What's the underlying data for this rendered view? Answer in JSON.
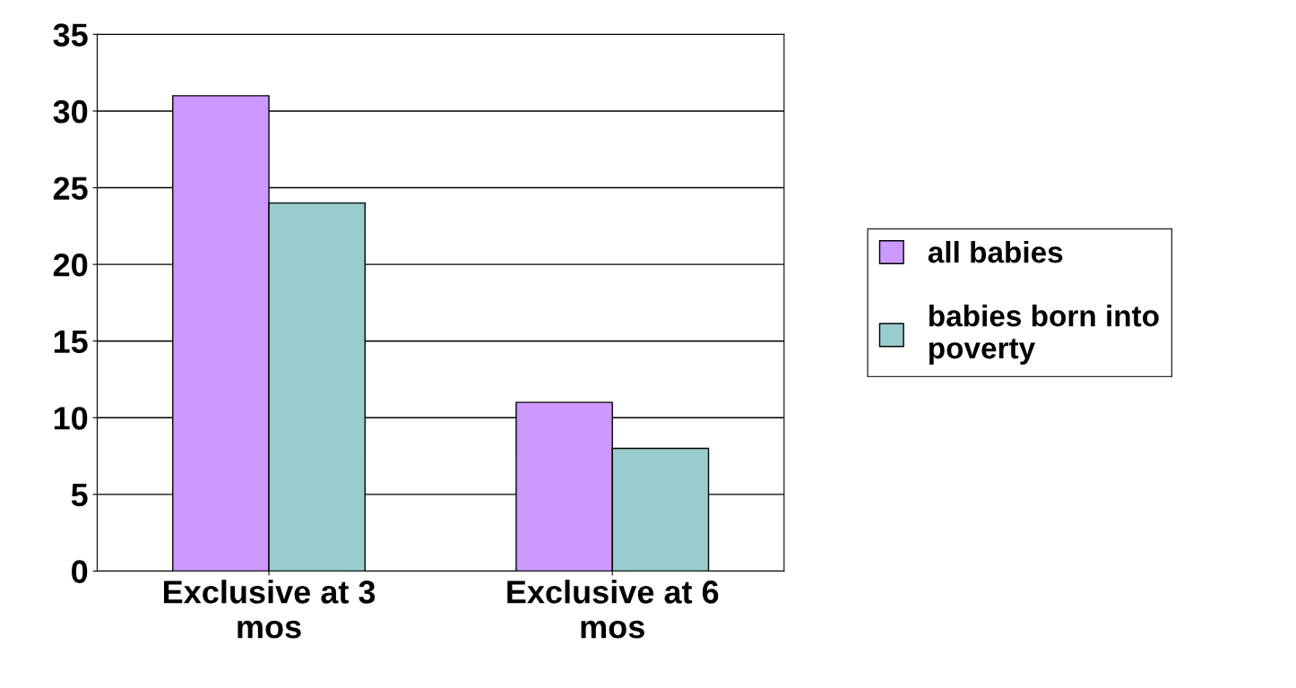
{
  "chart_data": {
    "type": "bar",
    "categories": [
      "Exclusive at 3\nmos",
      "Exclusive at 6\nmos"
    ],
    "series": [
      {
        "name": "all babies",
        "color": "#cc99ff",
        "values": [
          31,
          11
        ]
      },
      {
        "name": "babies born into\npoverty",
        "color": "#99cccc",
        "values": [
          24,
          8
        ]
      }
    ],
    "ylim": [
      0,
      35
    ],
    "yticks": [
      0,
      5,
      10,
      15,
      20,
      25,
      30,
      35
    ],
    "grid": "y",
    "legend": "right"
  }
}
